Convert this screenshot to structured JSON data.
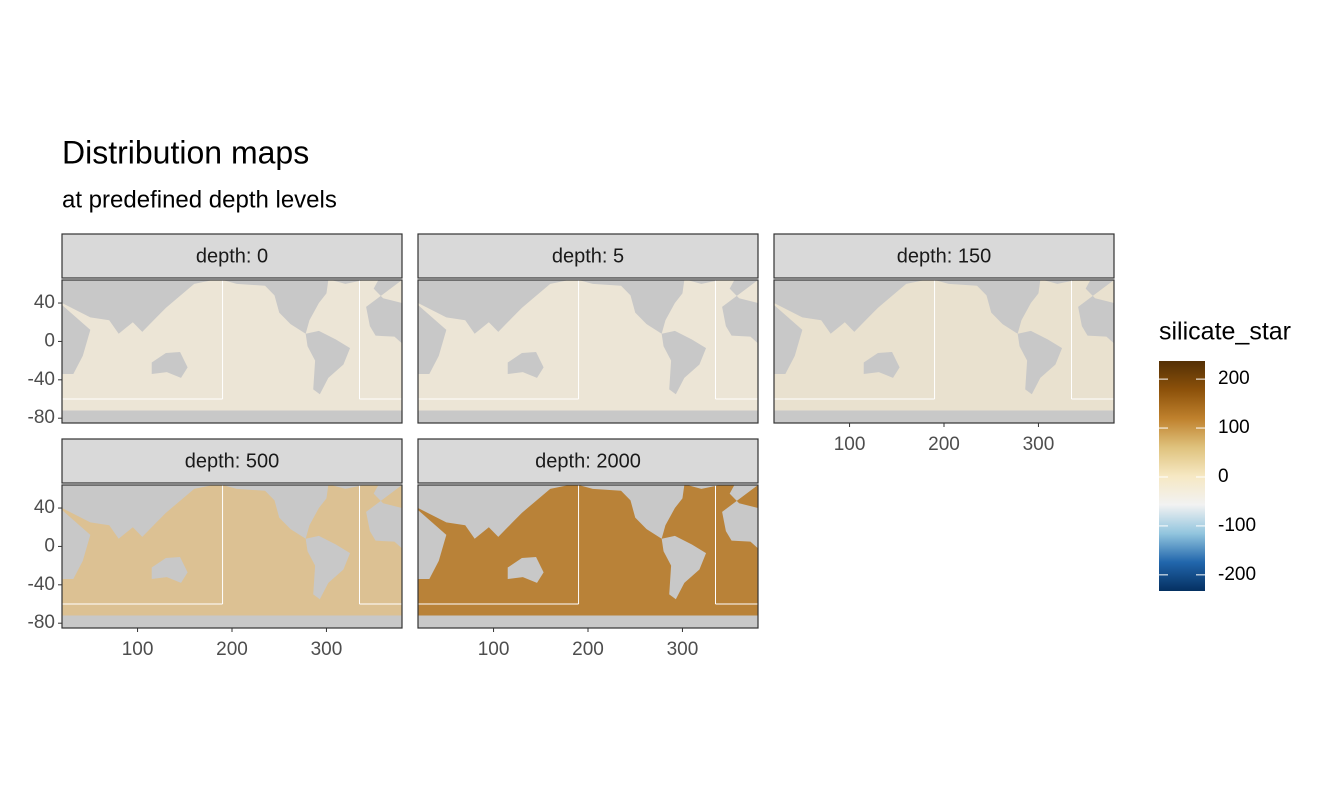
{
  "chart_data": {
    "type": "facet-map",
    "title": "Distribution maps",
    "subtitle": "at predefined depth levels",
    "facets": [
      {
        "label": "depth: 0",
        "color": "#ece5d6"
      },
      {
        "label": "depth: 5",
        "color": "#ece5d6"
      },
      {
        "label": "depth: 150",
        "color": "#e9e1cf"
      },
      {
        "label": "depth: 500",
        "color": "#dcc193"
      },
      {
        "label": "depth: 2000",
        "color": "#b98238"
      }
    ],
    "xlim": [
      20,
      380
    ],
    "xticks": [
      100,
      200,
      300
    ],
    "ylim": [
      -85,
      64
    ],
    "yticks": [
      40,
      0,
      -40,
      -80
    ],
    "legend": {
      "title": "silicate_star",
      "limits": [
        -233,
        237
      ],
      "ticks": [
        200,
        100,
        0,
        -100,
        -200
      ],
      "colors": [
        "#053061",
        "#2166ac",
        "#92c5de",
        "#f2f2f2",
        "#f6e8c3",
        "#dfc27d",
        "#bf812d",
        "#8c510a",
        "#543005"
      ]
    }
  }
}
